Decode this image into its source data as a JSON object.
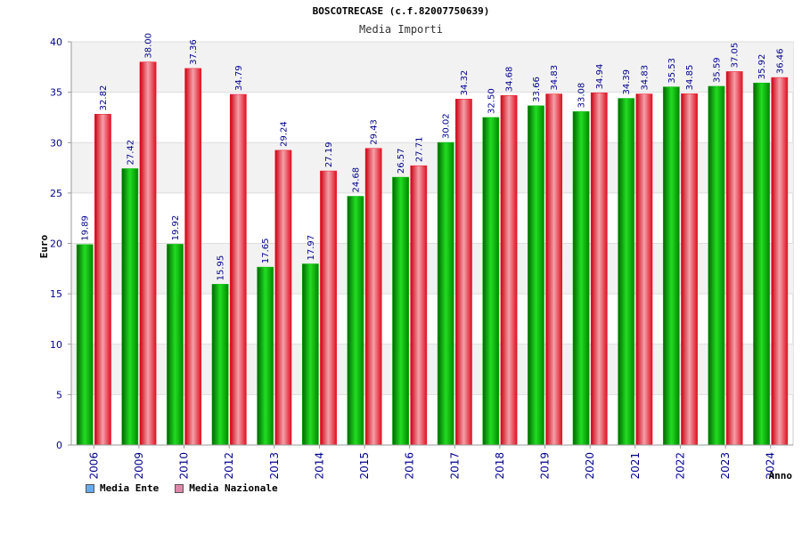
{
  "chart_data": {
    "type": "bar",
    "title": "BOSCOTRECASE (c.f.82007750639)",
    "subtitle": "Media Importi",
    "xlabel": "Anno",
    "ylabel": "Euro",
    "ylim": [
      0,
      40
    ],
    "yticks": [
      0,
      5,
      10,
      15,
      20,
      25,
      30,
      35,
      40
    ],
    "grid": true,
    "legend_position": "bottom-left",
    "categories": [
      "2006",
      "2009",
      "2010",
      "2012",
      "2013",
      "2014",
      "2015",
      "2016",
      "2017",
      "2018",
      "2019",
      "2020",
      "2021",
      "2022",
      "2023",
      "2024"
    ],
    "series": [
      {
        "name": "Media Ente",
        "values": [
          19.89,
          27.42,
          19.92,
          15.95,
          17.65,
          17.97,
          24.68,
          26.57,
          30.02,
          32.5,
          33.66,
          33.08,
          34.39,
          35.53,
          35.59,
          35.92
        ],
        "labels": [
          "19.89",
          "27.42",
          "19.92",
          "15.95",
          "17.65",
          "17.97",
          "24.68",
          "26.57",
          "30.02",
          "32.50",
          "33.66",
          "33.08",
          "34.39",
          "35.53",
          "35.59",
          "35.92"
        ]
      },
      {
        "name": "Media Nazionale",
        "values": [
          32.82,
          38.0,
          37.36,
          34.79,
          29.24,
          27.19,
          29.43,
          27.71,
          34.32,
          34.68,
          34.83,
          34.94,
          34.83,
          34.85,
          37.05,
          36.46
        ],
        "labels": [
          "32.82",
          "38.00",
          "37.36",
          "34.79",
          "29.24",
          "27.19",
          "29.43",
          "27.71",
          "34.32",
          "34.68",
          "34.83",
          "34.94",
          "34.83",
          "34.85",
          "37.05",
          "36.46"
        ]
      }
    ],
    "colors": {
      "ente_bar": "#00bb00",
      "nazionale_bar": "#ee1122",
      "legend_ente": "#66aaee",
      "legend_nazionale": "#dd88aa",
      "grid_band": "#f2f2f2",
      "tick_text": "#00008b"
    }
  }
}
